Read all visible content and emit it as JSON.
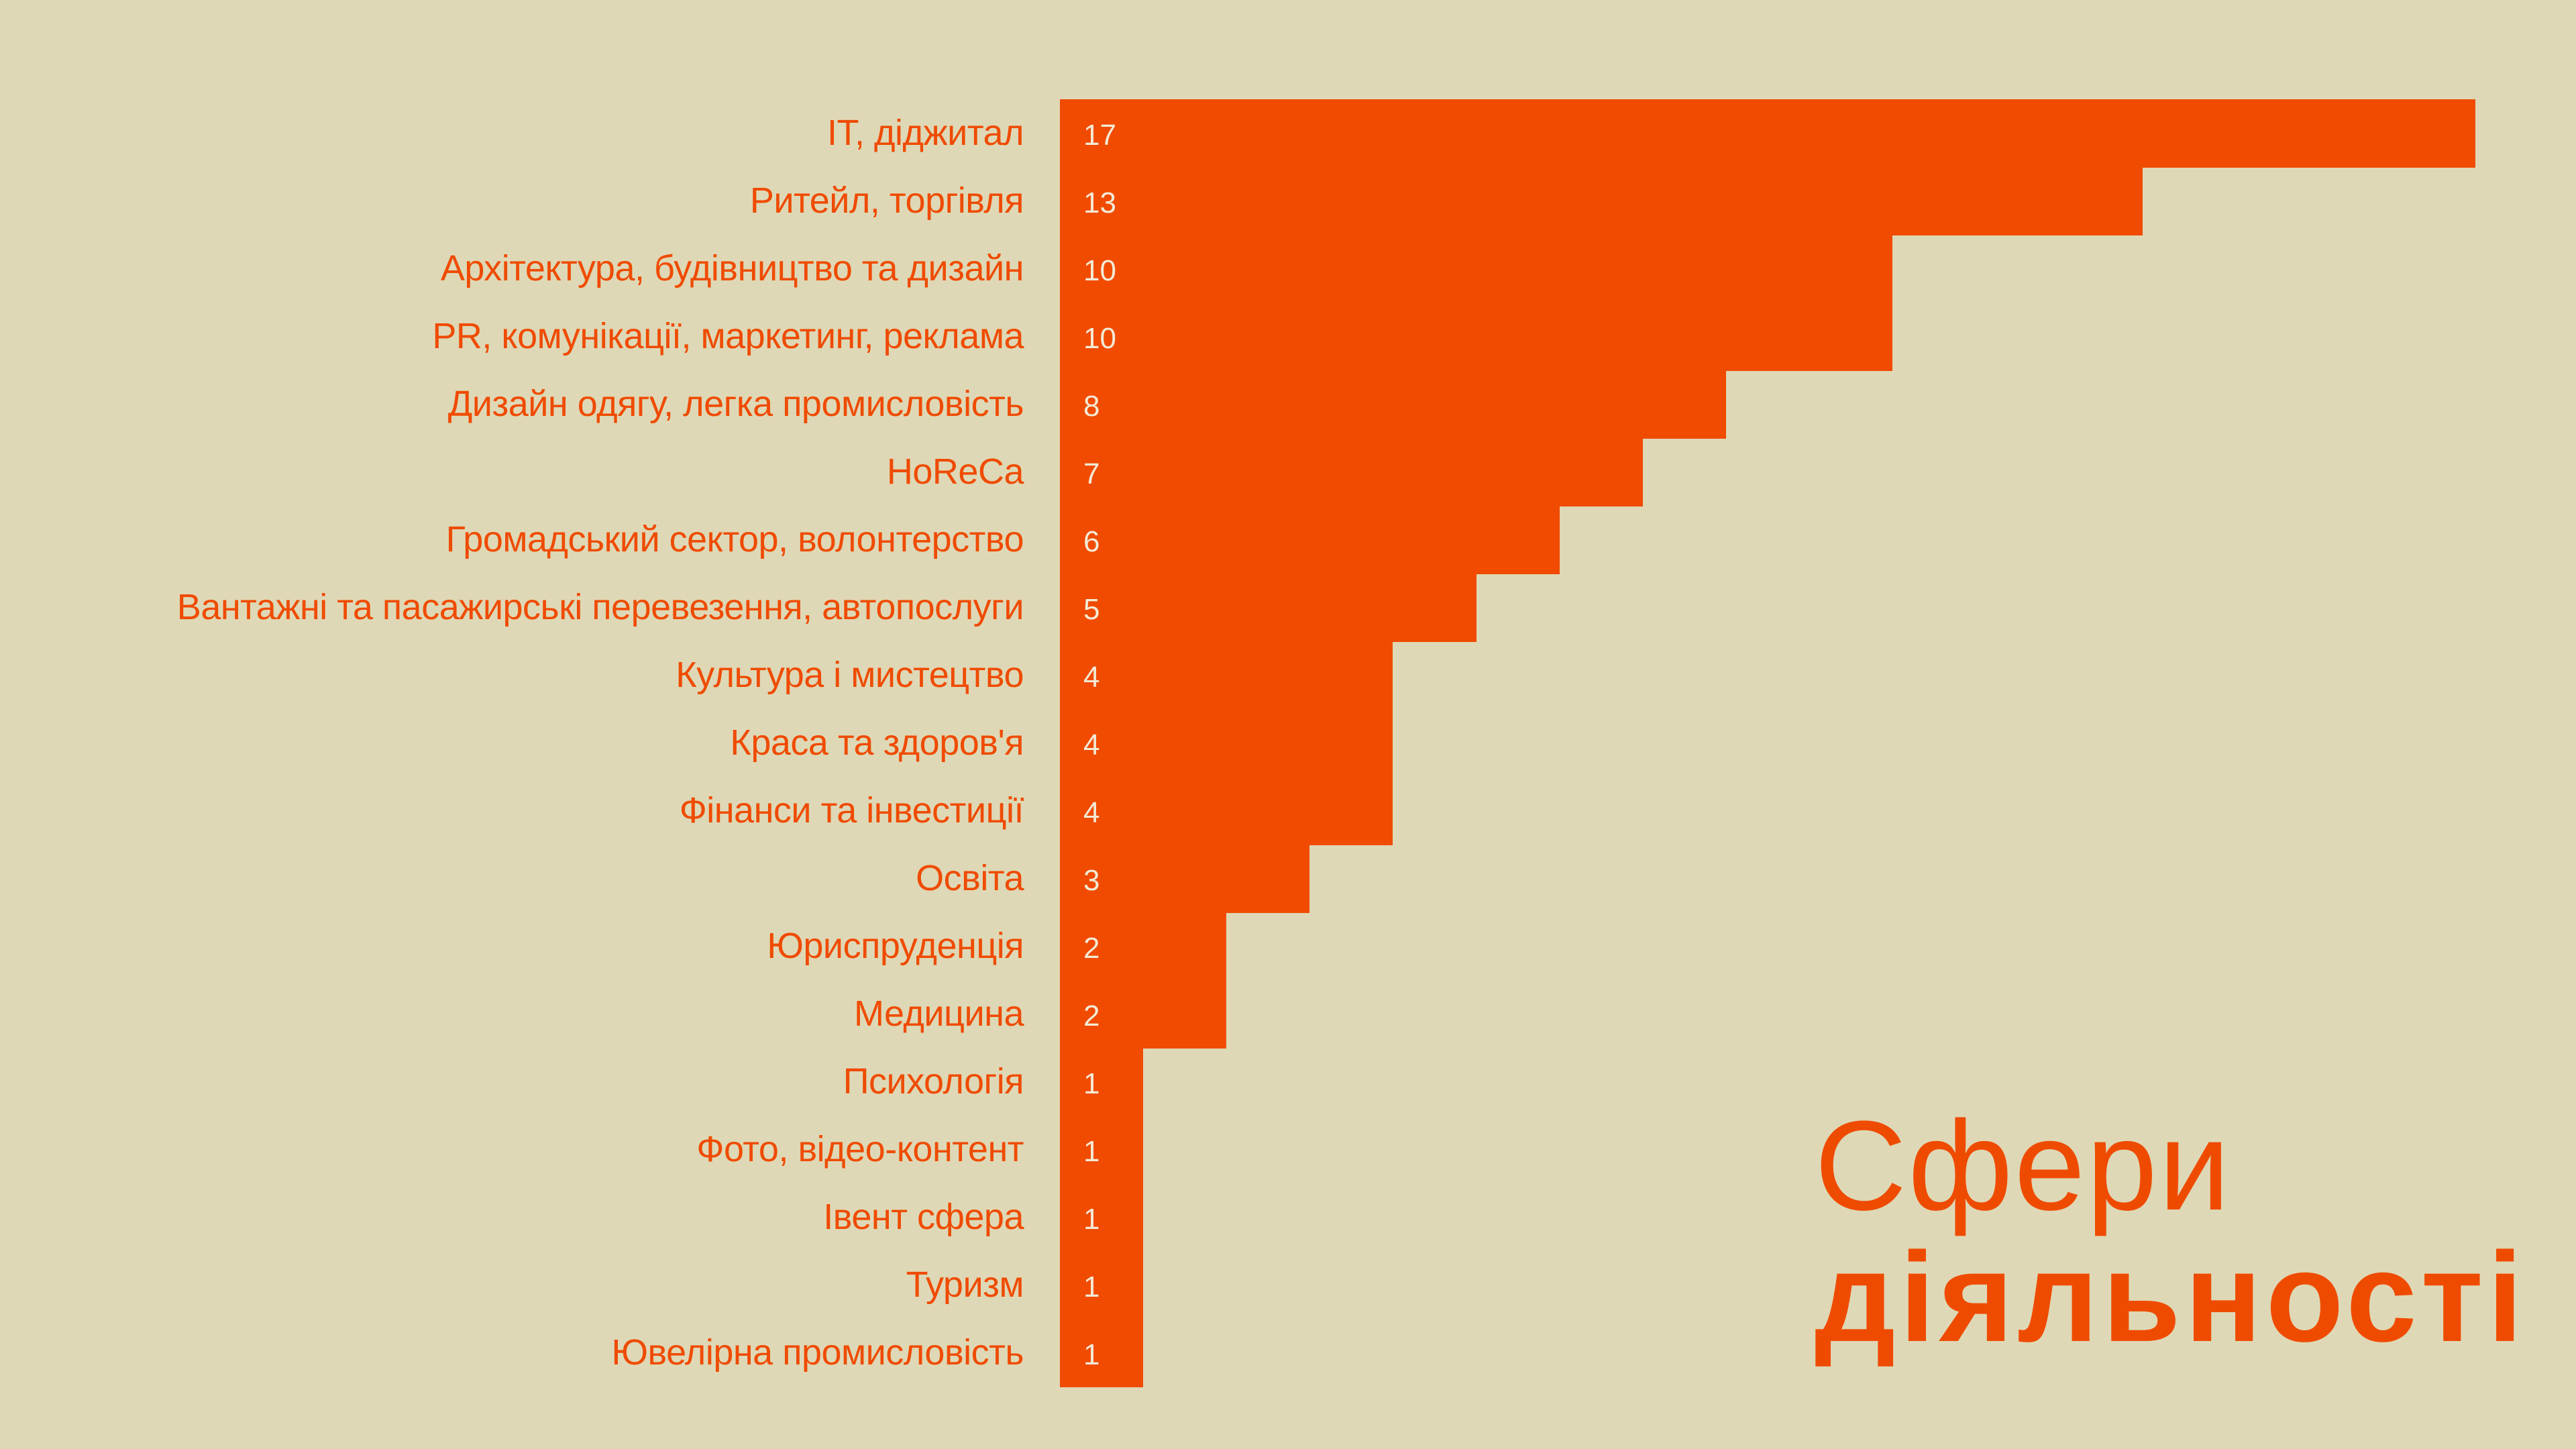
{
  "chart_data": {
    "type": "bar",
    "orientation": "horizontal",
    "title": "",
    "xlabel": "",
    "ylabel": "",
    "categories": [
      "IT, діджитал",
      "Ритейл, торгівля",
      "Архітектура, будівництво та дизайн",
      "PR, комунікації, маркетинг, реклама",
      "Дизайн одягу, легка промисловість",
      "HoReCa",
      "Громадський сектор, волонтерство",
      "Вантажні та пасажирські перевезення, автопослуги",
      "Культура і мистецтво",
      "Краса та здоров'я",
      "Фінанси та інвестиції",
      "Освіта",
      "Юриспруденція",
      "Медицина",
      "Психологія",
      "Фото, відео-контент",
      "Івент сфера",
      "Туризм",
      "Ювелірна промисловість"
    ],
    "values": [
      17,
      13,
      10,
      10,
      8,
      7,
      6,
      5,
      4,
      4,
      4,
      3,
      2,
      2,
      1,
      1,
      1,
      1,
      1
    ],
    "xlim": [
      0,
      17
    ],
    "grid": false,
    "legend": "none",
    "colors": {
      "bar": "#f04b00",
      "label": "#ef4b00",
      "value": "#f3ead6",
      "background": "#dfd8b6"
    }
  },
  "heading": {
    "line1": "Сфери",
    "line2": "діяльності"
  }
}
